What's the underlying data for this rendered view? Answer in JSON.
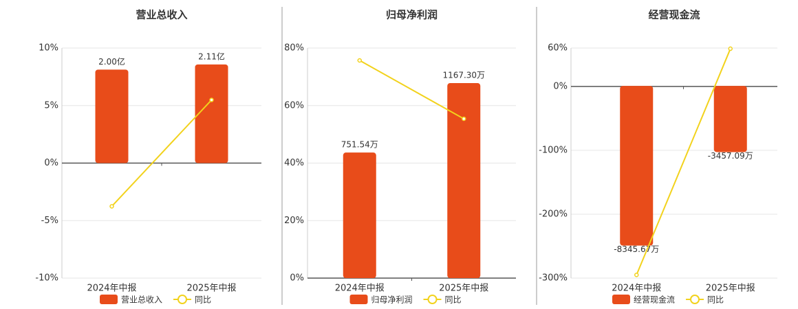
{
  "chart_data": [
    {
      "type": "combo",
      "title": "营业总收入",
      "categories": [
        "2024年中报",
        "2025年中报"
      ],
      "series": [
        {
          "name": "营业总收入",
          "color": "#e84c1a",
          "values": [
            2.0,
            2.11
          ],
          "value_labels": [
            "2.00亿",
            "2.11亿"
          ],
          "axis": "y2"
        },
        {
          "name": "同比",
          "color": "#f2d21c",
          "values": [
            -3.76,
            5.49
          ]
        }
      ],
      "ylim": [
        -10,
        10
      ],
      "yticks": [
        {
          "value": -10,
          "label": "-10%"
        },
        {
          "value": -5,
          "label": "-5%"
        },
        {
          "value": 0,
          "label": "0%"
        },
        {
          "value": 5,
          "label": "5%"
        },
        {
          "value": 10,
          "label": "10%"
        }
      ],
      "y2lim": [
        -2.46,
        2.46
      ],
      "grid": true
    },
    {
      "type": "combo",
      "title": "归母净利润",
      "categories": [
        "2024年中报",
        "2025年中报"
      ],
      "series": [
        {
          "name": "归母净利润",
          "color": "#e84c1a",
          "values": [
            751.54,
            1167.3
          ],
          "value_labels": [
            "751.54万",
            "1167.30万"
          ],
          "axis": "y2"
        },
        {
          "name": "同比",
          "color": "#f2d21c",
          "values": [
            75.7,
            55.4
          ]
        }
      ],
      "ylim": [
        0,
        80
      ],
      "yticks": [
        {
          "value": 0,
          "label": "0%"
        },
        {
          "value": 20,
          "label": "20%"
        },
        {
          "value": 40,
          "label": "40%"
        },
        {
          "value": 60,
          "label": "60%"
        },
        {
          "value": 80,
          "label": "80%"
        }
      ],
      "y2lim": [
        0,
        1377
      ],
      "grid": true
    },
    {
      "type": "combo",
      "title": "经营现金流",
      "categories": [
        "2024年中报",
        "2025年中报"
      ],
      "series": [
        {
          "name": "经营现金流",
          "color": "#e84c1a",
          "values": [
            -8345.67,
            -3457.09
          ],
          "value_labels": [
            "-8345.67万",
            "-3457.09万"
          ],
          "axis": "y2"
        },
        {
          "name": "同比",
          "color": "#f2d21c",
          "values": [
            -295,
            59
          ]
        }
      ],
      "ylim": [
        -300,
        60
      ],
      "yticks": [
        {
          "value": -300,
          "label": "-300%"
        },
        {
          "value": -200,
          "label": "-200%"
        },
        {
          "value": -100,
          "label": "-100%"
        },
        {
          "value": 0,
          "label": "0%"
        },
        {
          "value": 60,
          "label": "60%"
        }
      ],
      "y2lim": [
        -10044,
        1980
      ],
      "grid": true
    }
  ]
}
